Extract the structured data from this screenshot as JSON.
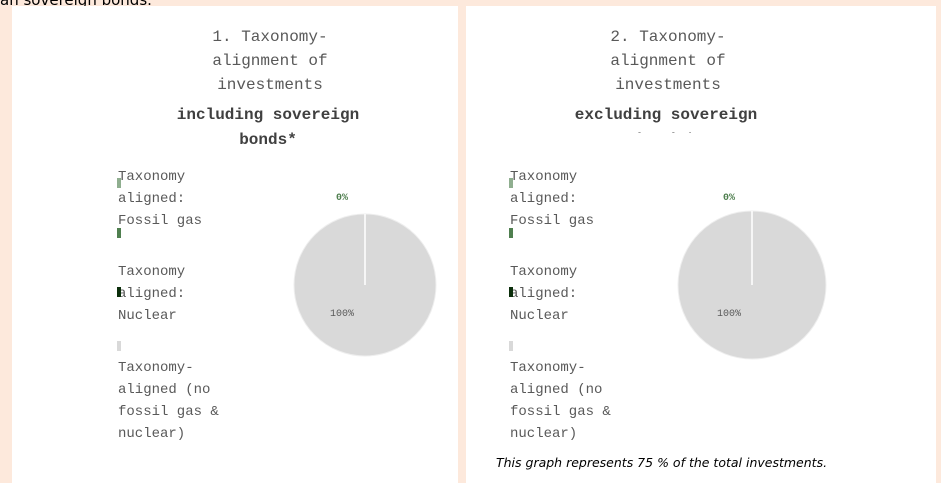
{
  "fragment": "an sovereign bonds.",
  "chart_data": [
    {
      "type": "pie",
      "title": "1. Taxonomy-alignment of investments",
      "subtitle": "including sovereign bonds*",
      "categories": [
        "Taxonomy aligned: Fossil gas",
        "Taxonomy aligned: Nuclear",
        "Taxonomy-aligned (no fossil gas & nuclear)"
      ],
      "values": [
        0,
        0,
        100
      ],
      "value_labels": [
        "0%",
        null,
        "100%"
      ],
      "colors": [
        "#8fae8f",
        "#0b2e0b",
        "#d9d9d9"
      ]
    },
    {
      "type": "pie",
      "title": "2. Taxonomy-alignment of investments",
      "subtitle": "excluding sovereign bonds*",
      "categories": [
        "Taxonomy aligned: Fossil gas",
        "Taxonomy aligned: Nuclear",
        "Taxonomy-aligned (no fossil gas & nuclear)"
      ],
      "values": [
        0,
        0,
        100
      ],
      "value_labels": [
        "0%",
        null,
        "100%"
      ],
      "colors": [
        "#8fae8f",
        "#0b2e0b",
        "#d9d9d9"
      ]
    }
  ],
  "footnote": "This graph represents 75 % of the total investments."
}
